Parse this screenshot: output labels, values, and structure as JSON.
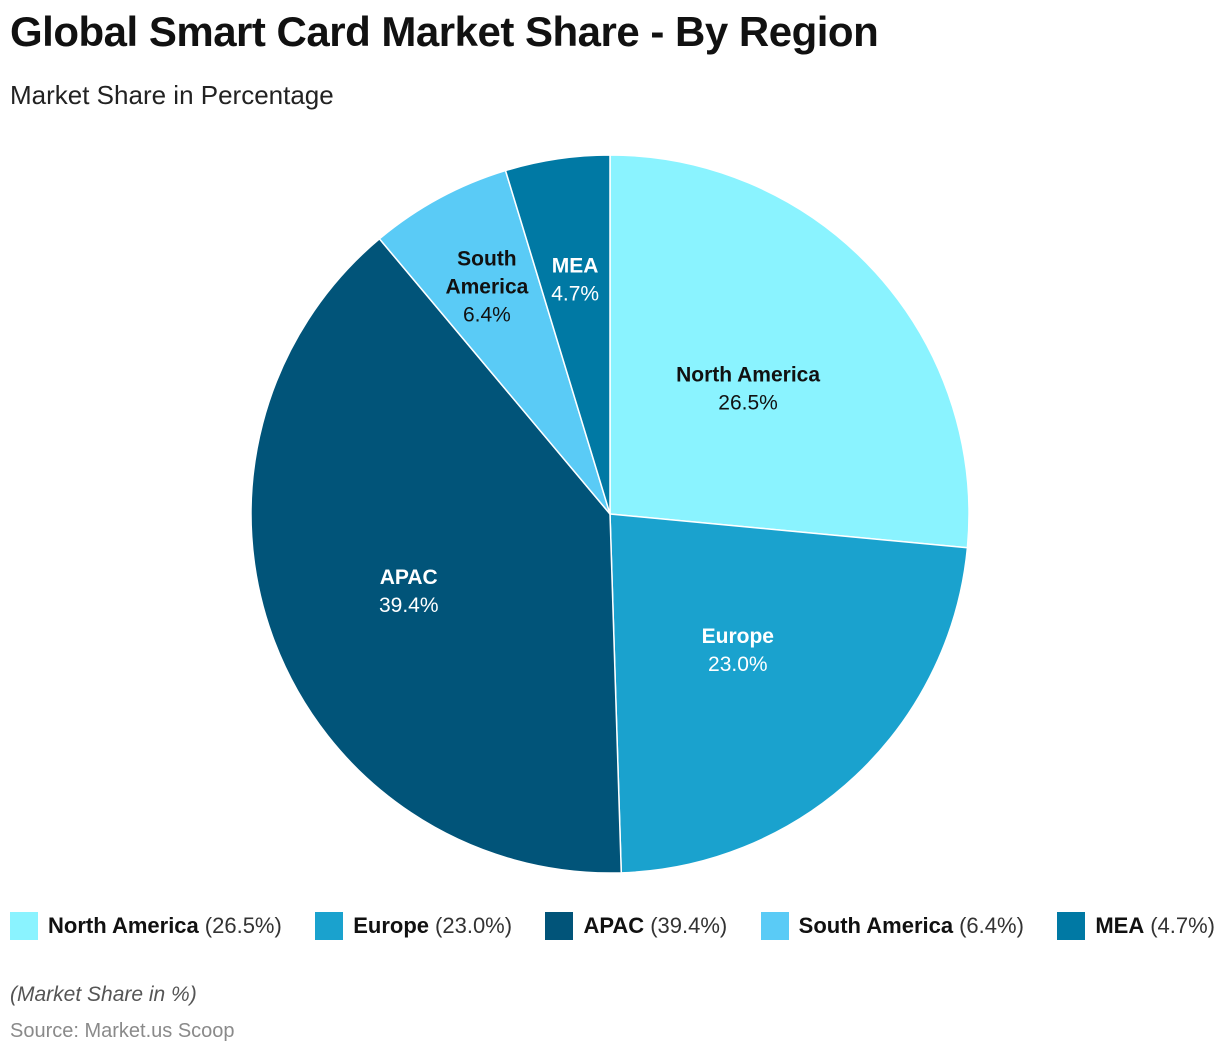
{
  "title": "Global Smart Card Market Share - By Region",
  "subtitle": "Market Share in Percentage",
  "note": "(Market Share in %)",
  "source": "Source: Market.us Scoop",
  "chart_data": {
    "type": "pie",
    "title": "Global Smart Card Market Share - By Region",
    "subtitle": "Market Share in Percentage",
    "unit": "%",
    "legend_position": "bottom",
    "slices": [
      {
        "name": "North America",
        "value": 26.5,
        "value_label": "26.5%",
        "legend_value": "(26.5%)",
        "color": "#8AF3FF",
        "text_color": "#111111",
        "label_lines": [
          "North America"
        ]
      },
      {
        "name": "Europe",
        "value": 23.0,
        "value_label": "23.0%",
        "legend_value": "(23.0%)",
        "color": "#1AA2CE",
        "text_color": "#ffffff",
        "label_lines": [
          "Europe"
        ]
      },
      {
        "name": "APAC",
        "value": 39.4,
        "value_label": "39.4%",
        "legend_value": "(39.4%)",
        "color": "#015479",
        "text_color": "#ffffff",
        "label_lines": [
          "APAC"
        ]
      },
      {
        "name": "South America",
        "value": 6.4,
        "value_label": "6.4%",
        "legend_value": "(6.4%)",
        "color": "#5ACBF6",
        "text_color": "#111111",
        "label_lines": [
          "South",
          "America"
        ]
      },
      {
        "name": "MEA",
        "value": 4.7,
        "value_label": "4.7%",
        "legend_value": "(4.7%)",
        "color": "#0079A4",
        "text_color": "#ffffff",
        "label_lines": [
          "MEA"
        ]
      }
    ]
  }
}
